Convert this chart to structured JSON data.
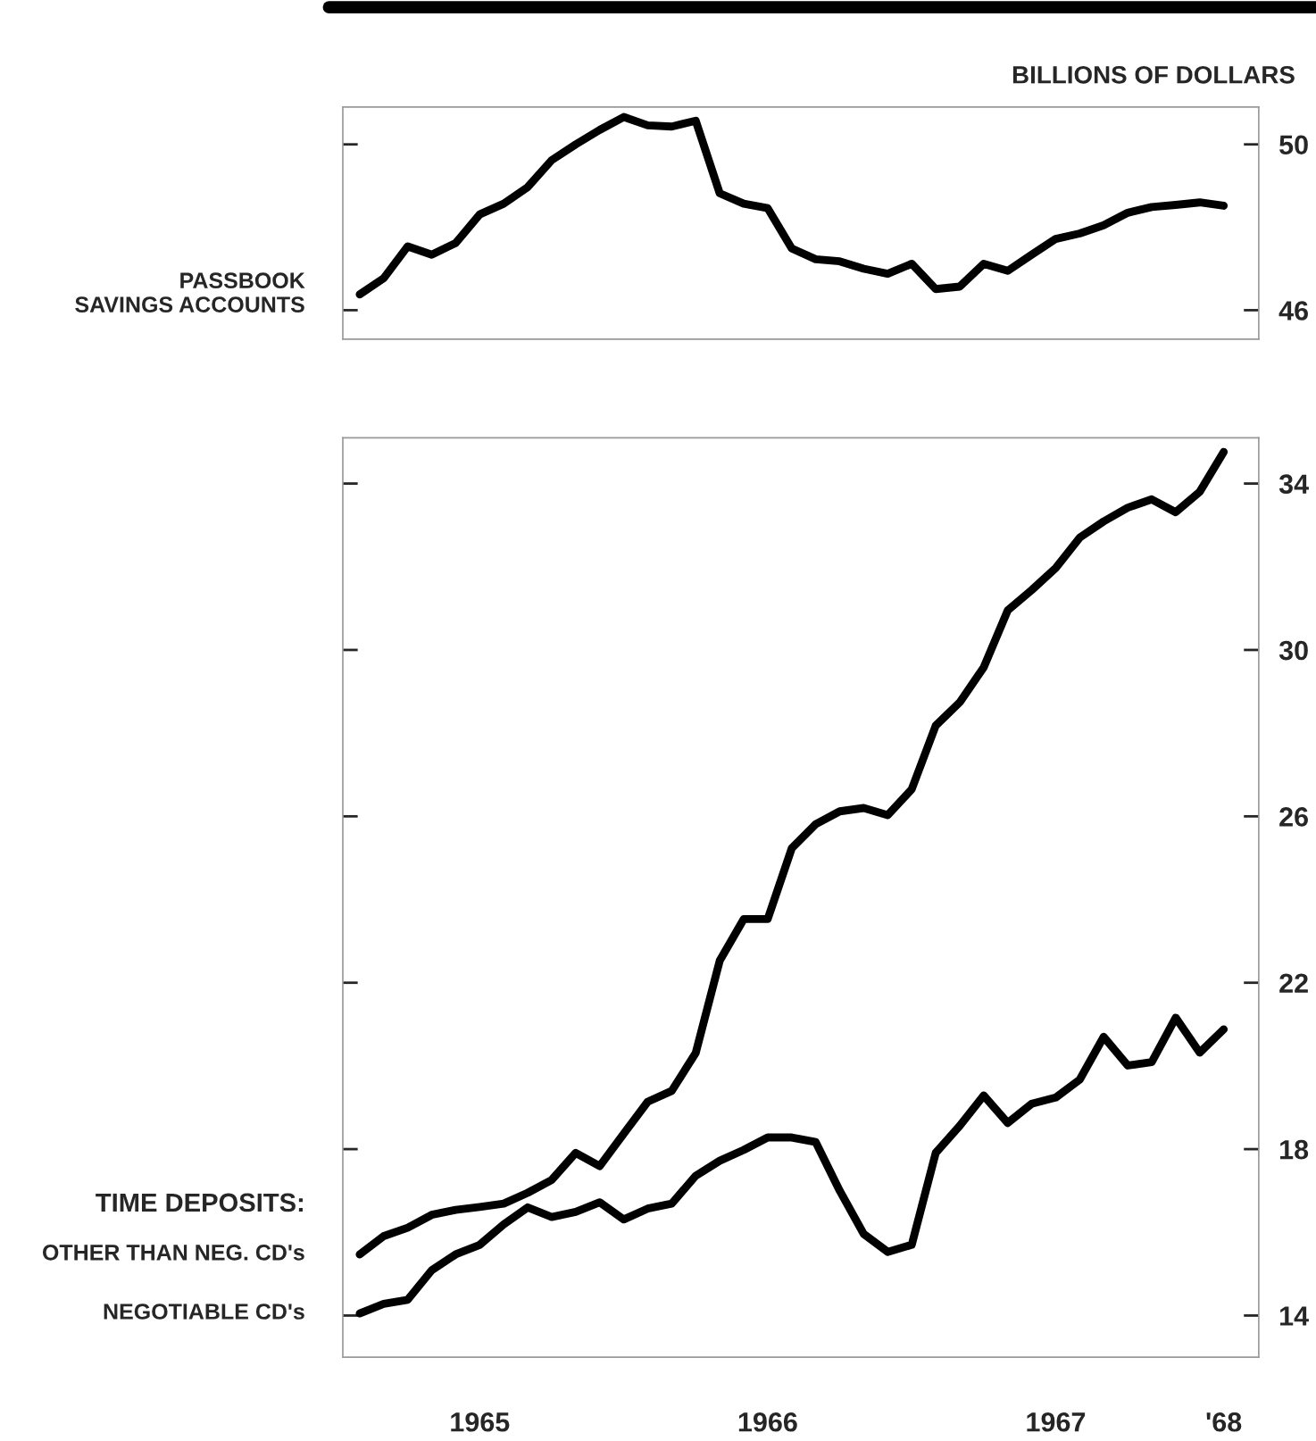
{
  "chart_data": [
    {
      "type": "line",
      "ylabel": "BILLIONS OF DOLLARS",
      "x": [
        "1965-02",
        "1965-03",
        "1965-04",
        "1965-05",
        "1965-06",
        "1965-07",
        "1965-08",
        "1965-09",
        "1965-10",
        "1965-11",
        "1965-12",
        "1966-01",
        "1966-02",
        "1966-03",
        "1966-04",
        "1966-05",
        "1966-06",
        "1966-07",
        "1966-08",
        "1966-09",
        "1966-10",
        "1966-11",
        "1966-12",
        "1967-01",
        "1967-02",
        "1967-03",
        "1967-04",
        "1967-05",
        "1967-06",
        "1967-07",
        "1967-08",
        "1967-09",
        "1967-10",
        "1967-11",
        "1967-12",
        "1968-01",
        "1968-02"
      ],
      "series": [
        {
          "name": "PASSBOOK\nSAVINGS ACCOUNTS",
          "color": "#000000",
          "values": [
            46.38,
            46.77,
            47.54,
            47.34,
            47.62,
            48.31,
            48.57,
            48.97,
            49.62,
            50.0,
            50.35,
            50.66,
            50.46,
            50.43,
            50.57,
            48.82,
            48.57,
            48.46,
            47.49,
            47.23,
            47.18,
            47.0,
            46.88,
            47.12,
            46.51,
            46.57,
            47.12,
            46.95,
            47.34,
            47.72,
            47.85,
            48.05,
            48.35,
            48.49,
            48.54,
            48.6,
            48.52
          ]
        }
      ],
      "xlim": [
        "1965-01-10",
        "1968-03-15"
      ],
      "ylim": [
        45.3,
        50.9
      ],
      "yticks": [
        46,
        50
      ],
      "tick_labels": "y",
      "line_style": "solid",
      "marker": "none",
      "legend": false,
      "grid": false
    },
    {
      "type": "line",
      "annotations": [
        "TIME DEPOSITS:"
      ],
      "x": [
        "1965-02",
        "1965-03",
        "1965-04",
        "1965-05",
        "1965-06",
        "1965-07",
        "1965-08",
        "1965-09",
        "1965-10",
        "1965-11",
        "1965-12",
        "1966-01",
        "1966-02",
        "1966-03",
        "1966-04",
        "1966-05",
        "1966-06",
        "1966-07",
        "1966-08",
        "1966-09",
        "1966-10",
        "1966-11",
        "1966-12",
        "1967-01",
        "1967-02",
        "1967-03",
        "1967-04",
        "1967-05",
        "1967-06",
        "1967-07",
        "1967-08",
        "1967-09",
        "1967-10",
        "1967-11",
        "1967-12",
        "1968-01",
        "1968-02"
      ],
      "series": [
        {
          "name": "OTHER THAN NEG. CD's",
          "color": "#000000",
          "values": [
            15.47,
            15.91,
            16.11,
            16.42,
            16.54,
            16.61,
            16.69,
            16.95,
            17.26,
            17.91,
            17.59,
            18.37,
            19.14,
            19.4,
            20.31,
            22.53,
            23.53,
            23.53,
            25.23,
            25.81,
            26.12,
            26.2,
            26.03,
            26.65,
            28.18,
            28.74,
            29.58,
            30.95,
            31.44,
            31.97,
            32.7,
            33.09,
            33.42,
            33.62,
            33.31,
            33.8,
            34.76
          ]
        },
        {
          "name": "NEGOTIABLE CD's",
          "color": "#000000",
          "values": [
            14.05,
            14.28,
            14.38,
            15.09,
            15.47,
            15.7,
            16.19,
            16.6,
            16.37,
            16.49,
            16.72,
            16.31,
            16.57,
            16.69,
            17.36,
            17.72,
            17.98,
            18.28,
            18.28,
            18.17,
            17.0,
            15.96,
            15.53,
            15.7,
            17.91,
            18.56,
            19.29,
            18.63,
            19.09,
            19.24,
            19.67,
            20.7,
            20.01,
            20.09,
            21.16,
            20.32,
            20.88
          ]
        }
      ],
      "xlim": [
        "1965-01-10",
        "1968-03-15"
      ],
      "ylim": [
        13.0,
        35.1
      ],
      "yticks": [
        14,
        18,
        22,
        26,
        30,
        34
      ],
      "xticks": [
        {
          "value": "1965-07",
          "label": "1965"
        },
        {
          "value": "1966-07",
          "label": "1966"
        },
        {
          "value": "1967-07",
          "label": "1967"
        },
        {
          "value": "1968-02",
          "label": "'68"
        }
      ],
      "line_style": "solid",
      "marker": "none",
      "legend": false,
      "grid": false
    }
  ]
}
